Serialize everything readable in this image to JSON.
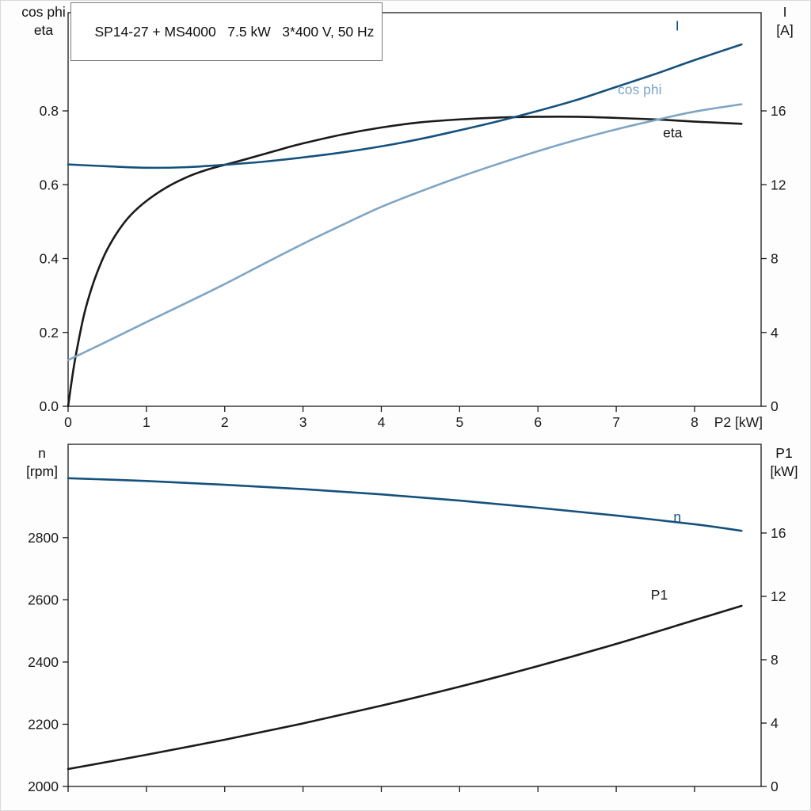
{
  "title_box": {
    "text": "SP14-27 + MS4000   7.5 kW   3*400 V, 50 Hz"
  },
  "colors": {
    "dark_blue": "#15517D",
    "light_blue": "#7FA5C5",
    "black": "#1A1A1A",
    "axis": "#1A1A1A",
    "plot_bg": "#FFFFFF"
  },
  "chart_data": [
    {
      "id": "upper",
      "type": "line",
      "title": "SP14-27 + MS4000   7.5 kW   3*400 V, 50 Hz",
      "x": {
        "label": "P2 [kW]",
        "lim": [
          0,
          8.85
        ],
        "ticks": [
          0,
          1,
          2,
          3,
          4,
          5,
          6,
          7,
          8
        ],
        "show_tick_labels": true
      },
      "axis_left": {
        "header": [
          "cos phi",
          "eta"
        ],
        "lim": [
          0,
          1.066
        ],
        "tick_values": [
          0,
          0.2,
          0.4,
          0.6,
          0.8
        ],
        "tick_labels": [
          "0.0",
          "0.2",
          "0.4",
          "0.6",
          "0.8"
        ]
      },
      "axis_right": {
        "header": [
          "I",
          "[A]"
        ],
        "lim": [
          0,
          21.32
        ],
        "tick_values": [
          0,
          4,
          8,
          12,
          16
        ],
        "tick_labels": [
          "0",
          "4",
          "8",
          "12",
          "16"
        ]
      },
      "grid": false,
      "series": [
        {
          "name": "eta",
          "axis": "left",
          "color": "#1A1A1A",
          "label": "eta",
          "label_at": [
            7.72,
            0.728
          ],
          "points": [
            [
              0,
              0
            ],
            [
              0.05,
              0.075
            ],
            [
              0.1,
              0.14
            ],
            [
              0.2,
              0.245
            ],
            [
              0.3,
              0.32
            ],
            [
              0.4,
              0.378
            ],
            [
              0.5,
              0.425
            ],
            [
              0.65,
              0.478
            ],
            [
              0.8,
              0.518
            ],
            [
              1,
              0.556
            ],
            [
              1.25,
              0.592
            ],
            [
              1.5,
              0.619
            ],
            [
              1.75,
              0.639
            ],
            [
              2,
              0.654
            ],
            [
              2.25,
              0.668
            ],
            [
              2.5,
              0.683
            ],
            [
              2.75,
              0.698
            ],
            [
              3,
              0.712
            ],
            [
              3.5,
              0.736
            ],
            [
              4,
              0.755
            ],
            [
              4.5,
              0.769
            ],
            [
              5,
              0.777
            ],
            [
              5.5,
              0.782
            ],
            [
              6,
              0.784
            ],
            [
              6.5,
              0.784
            ],
            [
              7,
              0.781
            ],
            [
              7.5,
              0.777
            ],
            [
              8,
              0.771
            ],
            [
              8.6,
              0.765
            ]
          ]
        },
        {
          "name": "cos phi",
          "axis": "left",
          "color": "#7FA5C5",
          "label": "cos phi",
          "label_at": [
            7.3,
            0.845
          ],
          "points": [
            [
              0,
              0.125
            ],
            [
              0.5,
              0.176
            ],
            [
              1,
              0.228
            ],
            [
              1.5,
              0.279
            ],
            [
              2,
              0.331
            ],
            [
              2.5,
              0.386
            ],
            [
              3,
              0.44
            ],
            [
              3.5,
              0.491
            ],
            [
              4,
              0.54
            ],
            [
              4.5,
              0.582
            ],
            [
              5,
              0.621
            ],
            [
              5.5,
              0.657
            ],
            [
              6,
              0.691
            ],
            [
              6.5,
              0.722
            ],
            [
              7,
              0.75
            ],
            [
              7.5,
              0.775
            ],
            [
              8,
              0.798
            ],
            [
              8.6,
              0.818
            ]
          ]
        },
        {
          "name": "I",
          "axis": "right",
          "color": "#15517D",
          "label": "I",
          "label_at": [
            7.78,
            20.35
          ],
          "points": [
            [
              0,
              13.1
            ],
            [
              0.5,
              13.0
            ],
            [
              1,
              12.92
            ],
            [
              1.5,
              12.95
            ],
            [
              2,
              13.08
            ],
            [
              2.5,
              13.25
            ],
            [
              3,
              13.48
            ],
            [
              3.5,
              13.75
            ],
            [
              4,
              14.08
            ],
            [
              4.5,
              14.48
            ],
            [
              5,
              14.95
            ],
            [
              5.5,
              15.45
            ],
            [
              6,
              16.0
            ],
            [
              6.5,
              16.6
            ],
            [
              7,
              17.3
            ],
            [
              7.5,
              18.0
            ],
            [
              8,
              18.75
            ],
            [
              8.6,
              19.6
            ]
          ]
        }
      ]
    },
    {
      "id": "lower",
      "type": "line",
      "x": {
        "label": "",
        "lim": [
          0,
          8.85
        ],
        "ticks": [
          0,
          1,
          2,
          3,
          4,
          5,
          6,
          7,
          8
        ],
        "show_tick_labels": false
      },
      "axis_left": {
        "header": [
          "n",
          "[rpm]"
        ],
        "lim": [
          2000,
          3100
        ],
        "tick_values": [
          2000,
          2200,
          2400,
          2600,
          2800
        ],
        "tick_labels": [
          "2000",
          "2200",
          "2400",
          "2600",
          "2800"
        ]
      },
      "axis_right": {
        "header": [
          "P1",
          "[kW]"
        ],
        "lim": [
          0,
          21.6
        ],
        "tick_values": [
          0,
          4,
          8,
          12,
          16
        ],
        "tick_labels": [
          "0",
          "4",
          "8",
          "12",
          "16"
        ]
      },
      "grid": false,
      "series": [
        {
          "name": "n",
          "axis": "left",
          "color": "#15517D",
          "label": "n",
          "label_at": [
            7.78,
            2852
          ],
          "points": [
            [
              0,
              2991
            ],
            [
              1,
              2982
            ],
            [
              2,
              2970
            ],
            [
              3,
              2956
            ],
            [
              4,
              2939
            ],
            [
              5,
              2919
            ],
            [
              6,
              2896
            ],
            [
              7,
              2871
            ],
            [
              8,
              2843
            ],
            [
              8.6,
              2822
            ]
          ]
        },
        {
          "name": "P1",
          "axis": "right",
          "color": "#1A1A1A",
          "label": "P1",
          "label_at": [
            7.55,
            11.8
          ],
          "points": [
            [
              0,
              1.1
            ],
            [
              1,
              2.0
            ],
            [
              2,
              2.95
            ],
            [
              3,
              3.98
            ],
            [
              4,
              5.1
            ],
            [
              5,
              6.3
            ],
            [
              6,
              7.6
            ],
            [
              7,
              9.0
            ],
            [
              8,
              10.5
            ],
            [
              8.6,
              11.4
            ]
          ]
        }
      ]
    }
  ]
}
